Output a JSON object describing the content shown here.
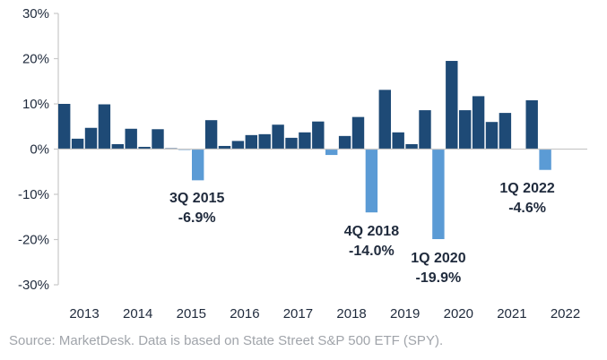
{
  "chart_data": {
    "type": "bar",
    "ylim": [
      -30,
      30
    ],
    "y_ticks": [
      "30%",
      "20%",
      "10%",
      "0%",
      "-10%",
      "-20%",
      "-30%"
    ],
    "y_tick_values": [
      30,
      20,
      10,
      0,
      -10,
      -20,
      -30
    ],
    "x_tick_labels": [
      "2013",
      "2014",
      "2015",
      "2016",
      "2017",
      "2018",
      "2019",
      "2020",
      "2021",
      "2022"
    ],
    "grid": false,
    "colors": {
      "positive": "#1e4a76",
      "negative": "#5b9bd5",
      "axis": "#c9c9c9"
    },
    "categories": [
      "1Q 2013",
      "2Q 2013",
      "3Q 2013",
      "4Q 2013",
      "1Q 2014",
      "2Q 2014",
      "3Q 2014",
      "4Q 2014",
      "1Q 2015",
      "2Q 2015",
      "3Q 2015",
      "4Q 2015",
      "1Q 2016",
      "2Q 2016",
      "3Q 2016",
      "4Q 2016",
      "1Q 2017",
      "2Q 2017",
      "3Q 2017",
      "4Q 2017",
      "1Q 2018",
      "2Q 2018",
      "3Q 2018",
      "4Q 2018",
      "1Q 2019",
      "2Q 2019",
      "3Q 2019",
      "4Q 2019",
      "1Q 2020",
      "2Q 2020",
      "3Q 2020",
      "4Q 2020",
      "1Q 2021",
      "2Q 2021",
      "3Q 2021",
      "4Q 2021",
      "1Q 2022"
    ],
    "values": [
      10.0,
      2.3,
      4.7,
      9.9,
      1.1,
      4.5,
      0.5,
      4.4,
      0.2,
      -0.2,
      -6.9,
      6.4,
      0.7,
      1.8,
      3.1,
      3.3,
      5.4,
      2.5,
      3.7,
      6.1,
      -1.3,
      2.9,
      7.1,
      -14.0,
      13.1,
      3.7,
      1.1,
      8.6,
      -19.9,
      19.5,
      8.6,
      11.7,
      6.0,
      8.0,
      0.0,
      10.8,
      -4.6
    ],
    "annotations": [
      {
        "quarter": "3Q 2015",
        "value": "-6.9%"
      },
      {
        "quarter": "4Q 2018",
        "value": "-14.0%"
      },
      {
        "quarter": "1Q 2020",
        "value": "-19.9%"
      },
      {
        "quarter": "1Q 2022",
        "value": "-4.6%"
      }
    ]
  },
  "source": "Source: MarketDesk. Data is based on State Street S&P 500 ETF (SPY)."
}
